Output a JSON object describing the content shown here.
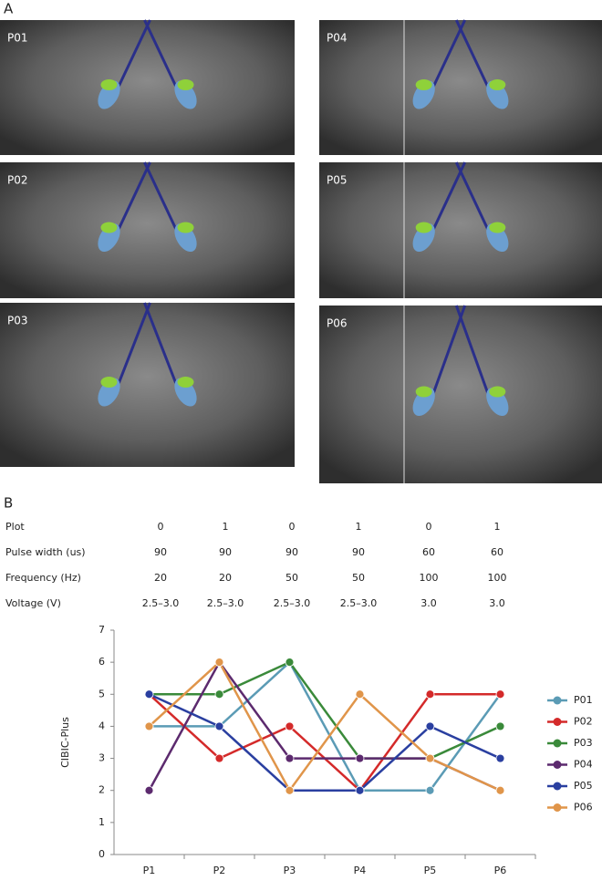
{
  "panel_a": {
    "label": "A",
    "images": [
      "P01",
      "P02",
      "P03",
      "P04",
      "P05",
      "P06"
    ]
  },
  "panel_b": {
    "label": "B",
    "table": {
      "rows": [
        [
          "Plot",
          "0",
          "1",
          "0",
          "1",
          "0",
          "1"
        ],
        [
          "Pulse width (us)",
          "90",
          "90",
          "90",
          "90",
          "60",
          "60"
        ],
        [
          "Frequency (Hz)",
          "20",
          "20",
          "50",
          "50",
          "100",
          "100"
        ],
        [
          "Voltage (V)",
          "2.5–3.0",
          "2.5–3.0",
          "2.5–3.0",
          "2.5–3.0",
          "3.0",
          "3.0"
        ]
      ]
    }
  },
  "chart_data": {
    "type": "line",
    "y_label": "CIBIC-Plus",
    "categories": [
      "P1",
      "P2",
      "P3",
      "P4",
      "P5",
      "P6"
    ],
    "series": [
      {
        "name": "P01",
        "color": "#5b9bb5",
        "values": [
          4,
          4,
          6,
          2,
          2,
          5
        ]
      },
      {
        "name": "P02",
        "color": "#d42a2a",
        "values": [
          5,
          3,
          4,
          2,
          5,
          5
        ]
      },
      {
        "name": "P03",
        "color": "#3a8a3a",
        "values": [
          5,
          5,
          6,
          3,
          3,
          4
        ]
      },
      {
        "name": "P04",
        "color": "#5c2a6e",
        "values": [
          2,
          6,
          3,
          3,
          3,
          2
        ]
      },
      {
        "name": "P05",
        "color": "#2a3fa0",
        "values": [
          5,
          4,
          2,
          2,
          4,
          3
        ]
      },
      {
        "name": "P06",
        "color": "#e0954a",
        "values": [
          4,
          6,
          2,
          5,
          3,
          2
        ]
      }
    ],
    "ylim": [
      0,
      7
    ],
    "yticks": [
      0,
      1,
      2,
      3,
      4,
      5,
      6,
      7
    ],
    "grid": false,
    "legend": "right"
  }
}
